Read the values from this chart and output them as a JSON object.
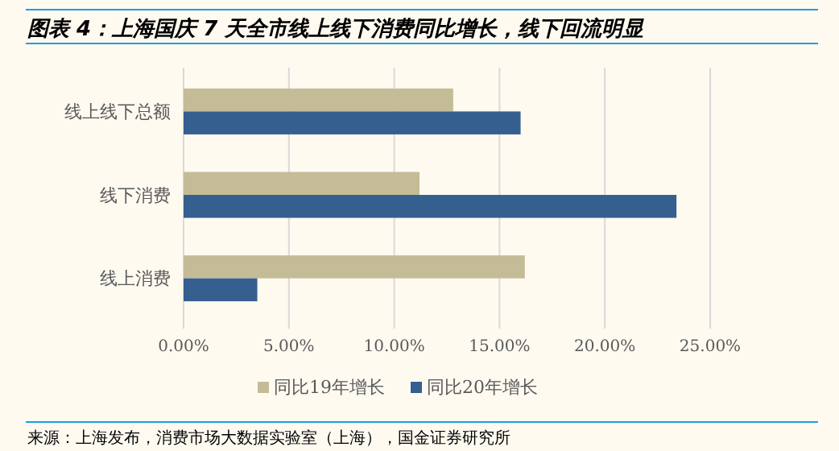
{
  "chart_data": {
    "type": "bar",
    "orientation": "horizontal",
    "title": "图表 4：上海国庆 7 天全市线上线下消费同比增长，线下回流明显",
    "categories": [
      "线上线下总额",
      "线下消费",
      "线上消费"
    ],
    "series": [
      {
        "name": "同比19年增长",
        "color": "#c4bc96",
        "values": [
          12.8,
          11.2,
          16.2
        ]
      },
      {
        "name": "同比20年增长",
        "color": "#355f8f",
        "values": [
          16.0,
          23.4,
          3.5
        ]
      }
    ],
    "xlim": [
      0,
      25
    ],
    "xticks": [
      {
        "value": 0,
        "label": "0.00%"
      },
      {
        "value": 5,
        "label": "5.00%"
      },
      {
        "value": 10,
        "label": "10.00%"
      },
      {
        "value": 15,
        "label": "15.00%"
      },
      {
        "value": 20,
        "label": "20.00%"
      },
      {
        "value": 25,
        "label": "25.00%"
      }
    ],
    "grid": "x",
    "legend": "bottom",
    "annotations": [
      "来源：上海发布，消费市场大数据实验室（上海），国金证券研究所"
    ]
  }
}
